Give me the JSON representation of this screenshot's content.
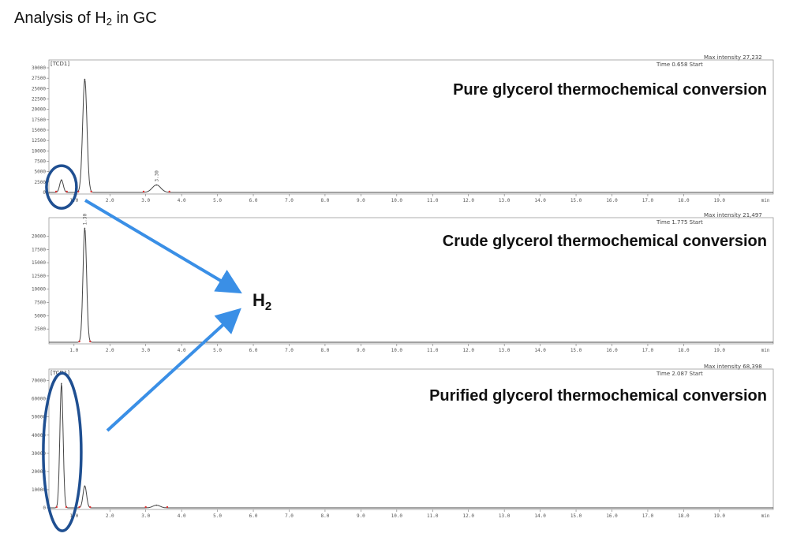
{
  "page": {
    "title_main": "Analysis of H",
    "title_sub": "2",
    "title_end": " in GC"
  },
  "annotation": {
    "h2_label": "H",
    "h2_sub": "2",
    "arrow_color": "#3a8fe6",
    "circle_color": "#1f4f91"
  },
  "chart_data": [
    {
      "type": "line",
      "title": "Pure glycerol thermochemical conversion",
      "channel": "[TCD1]",
      "header_left": "Time  0.658  Start",
      "header_right": "Max intensity  27,232",
      "yticks": [
        "30000",
        "27500",
        "25000",
        "22500",
        "20000",
        "17500",
        "15000",
        "12500",
        "10000",
        "7500",
        "5000",
        "2500",
        "0"
      ],
      "xticks": [
        "1.0",
        "2.0",
        "3.0",
        "4.0",
        "5.0",
        "6.0",
        "7.0",
        "8.0",
        "9.0",
        "10.0",
        "11.0",
        "12.0",
        "13.0",
        "14.0",
        "15.0",
        "16.0",
        "17.0",
        "18.0",
        "19.0"
      ],
      "x_unit": "min",
      "xlim": [
        0.3,
        20.5
      ],
      "ylim": [
        0,
        30000
      ],
      "peaks": [
        {
          "rt": 0.65,
          "height": 3000,
          "width": 0.05
        },
        {
          "rt": 1.3,
          "height": 27232,
          "width": 0.06
        },
        {
          "rt": 3.3,
          "height": 1800,
          "width": 0.12
        }
      ],
      "peak_label": "3.30"
    },
    {
      "type": "line",
      "title": "Crude glycerol thermochemical conversion",
      "channel": "",
      "header_left": "Time  1.775  Start",
      "header_right": "Max intensity  21,497",
      "yticks": [
        "20000",
        "17500",
        "15000",
        "12500",
        "10000",
        "7500",
        "5000",
        "2500"
      ],
      "xticks": [
        "1.0",
        "2.0",
        "3.0",
        "4.0",
        "5.0",
        "6.0",
        "7.0",
        "8.0",
        "9.0",
        "10.0",
        "11.0",
        "12.0",
        "13.0",
        "14.0",
        "15.0",
        "16.0",
        "17.0",
        "18.0",
        "19.0"
      ],
      "x_unit": "min",
      "xlim": [
        0.3,
        20.5
      ],
      "ylim": [
        0,
        22000
      ],
      "peaks": [
        {
          "rt": 1.3,
          "height": 21497,
          "width": 0.05
        }
      ],
      "peak_label": "1.30"
    },
    {
      "type": "line",
      "title": "Purified glycerol thermochemical conversion",
      "channel": "[TCD1]",
      "header_left": "Time  2.087  Start",
      "header_right": "Max intensity  68,398",
      "yticks": [
        "70000",
        "60000",
        "50000",
        "40000",
        "30000",
        "20000",
        "10000",
        "0"
      ],
      "xticks": [
        "1.0",
        "2.0",
        "3.0",
        "4.0",
        "5.0",
        "6.0",
        "7.0",
        "8.0",
        "9.0",
        "10.0",
        "11.0",
        "12.0",
        "13.0",
        "14.0",
        "15.0",
        "16.0",
        "17.0",
        "18.0",
        "19.0"
      ],
      "x_unit": "min",
      "xlim": [
        0.3,
        20.5
      ],
      "ylim": [
        0,
        72000
      ],
      "peaks": [
        {
          "rt": 0.65,
          "height": 68398,
          "width": 0.045
        },
        {
          "rt": 1.3,
          "height": 12000,
          "width": 0.05
        },
        {
          "rt": 3.3,
          "height": 1500,
          "width": 0.1
        }
      ],
      "peak_label": ""
    }
  ]
}
